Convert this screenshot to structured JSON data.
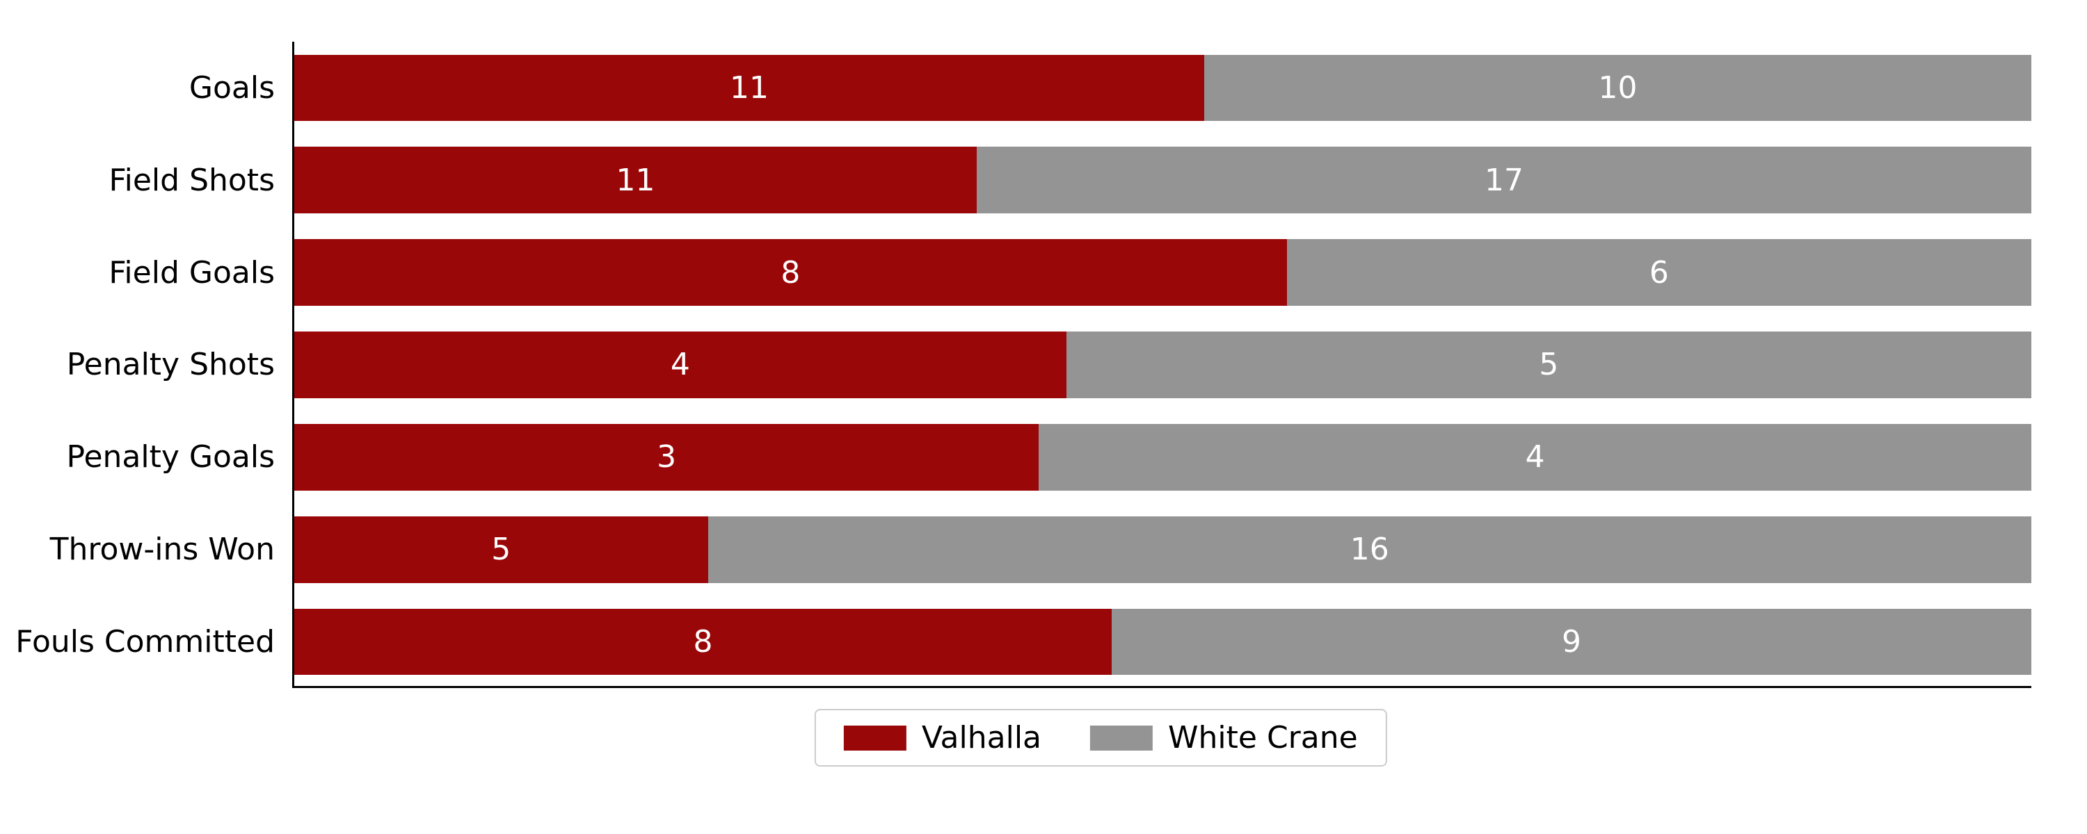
{
  "chart": {
    "type": "stacked-horizontal-bar-100",
    "background_color": "#ffffff",
    "axis_color": "#000000",
    "label_fontsize": 44,
    "value_fontsize": 44,
    "value_color": "#ffffff",
    "legend_fontsize": 44,
    "legend_border_color": "#cccccc",
    "bar_height_pct": 0.72,
    "row_gap_pct": 0.28,
    "categories": [
      "Goals",
      "Field Shots",
      "Field Goals",
      "Penalty Shots",
      "Penalty Goals",
      "Throw-ins Won",
      "Fouls Committed"
    ],
    "series": [
      {
        "name": "Valhalla",
        "color": "#9a0709"
      },
      {
        "name": "White Crane",
        "color": "#949494"
      }
    ],
    "data": {
      "Valhalla": [
        11,
        11,
        8,
        4,
        3,
        5,
        8
      ],
      "White Crane": [
        10,
        17,
        6,
        5,
        4,
        16,
        9
      ]
    }
  }
}
